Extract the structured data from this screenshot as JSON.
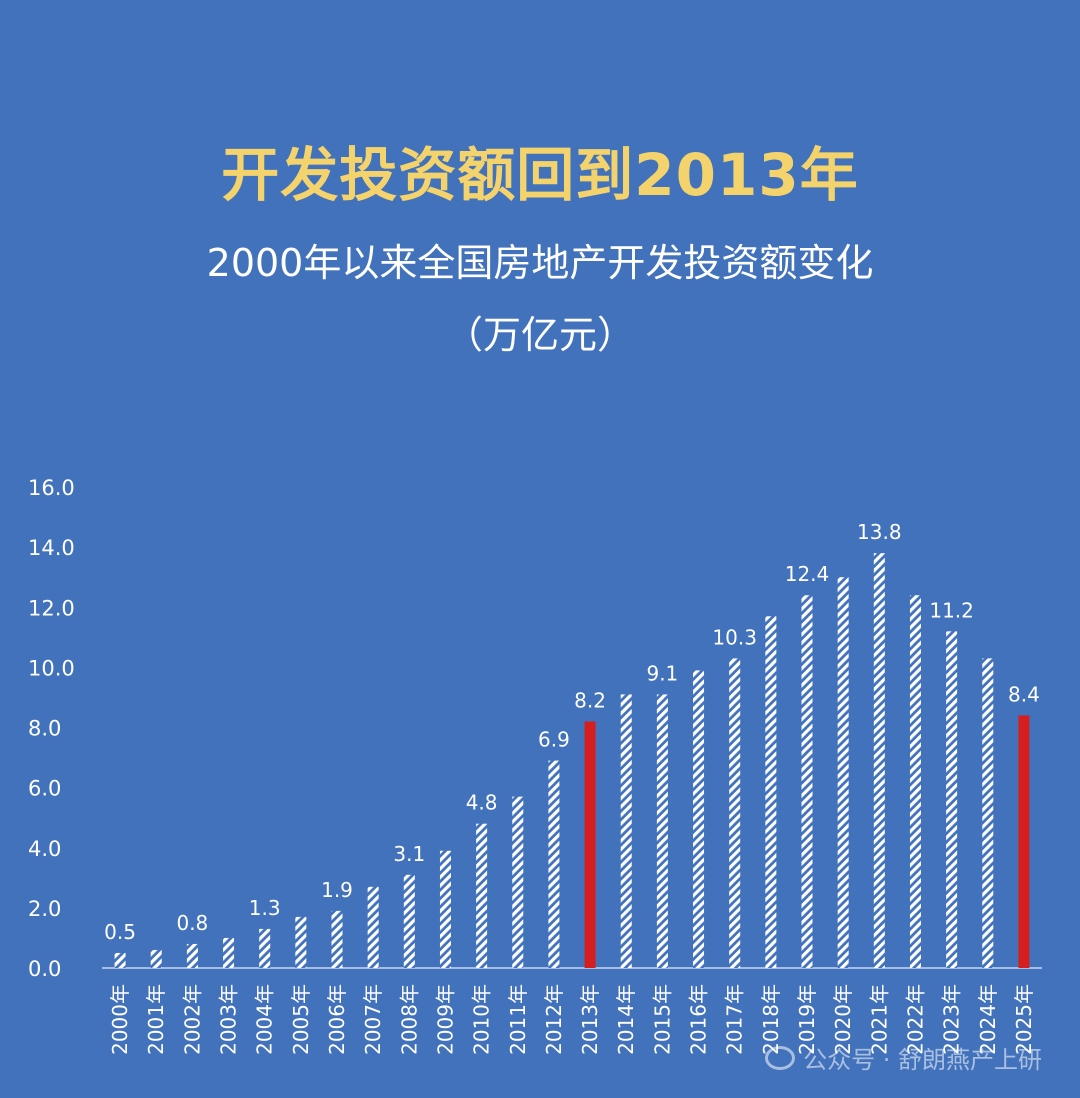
{
  "header": {
    "title": "开发投资额回到2013年",
    "subtitle": "2000年以来全国房地产开发投资额变化",
    "unit": "（万亿元）"
  },
  "watermark": {
    "text": "公众号 · 舒朗燕产上研"
  },
  "colors": {
    "background": "#4272bb",
    "title": "#f4d36c",
    "bar_pattern": "#ffffff",
    "highlight": "#d71e1e"
  },
  "chart_data": {
    "type": "bar",
    "title": "开发投资额回到2013年",
    "subtitle": "2000年以来全国房地产开发投资额变化",
    "unit": "（万亿元）",
    "xlabel": "",
    "ylabel": "",
    "ylim": [
      0,
      16
    ],
    "yticks": [
      "0.0",
      "2.0",
      "4.0",
      "6.0",
      "8.0",
      "10.0",
      "12.0",
      "14.0",
      "16.0"
    ],
    "grid": false,
    "categories": [
      "2000年",
      "2001年",
      "2002年",
      "2003年",
      "2004年",
      "2005年",
      "2006年",
      "2007年",
      "2008年",
      "2009年",
      "2010年",
      "2011年",
      "2012年",
      "2013年",
      "2014年",
      "2015年",
      "2016年",
      "2017年",
      "2018年",
      "2019年",
      "2020年",
      "2021年",
      "2022年",
      "2023年",
      "2024年",
      "2025年"
    ],
    "values": [
      0.5,
      0.6,
      0.8,
      1.0,
      1.3,
      1.7,
      1.9,
      2.7,
      3.1,
      3.9,
      4.8,
      5.7,
      6.9,
      8.2,
      9.1,
      9.1,
      9.9,
      10.3,
      11.7,
      12.4,
      13.0,
      13.8,
      12.4,
      11.2,
      10.3,
      8.4
    ],
    "highlighted": [
      "2013年",
      "2025年"
    ],
    "data_labels": [
      {
        "category": "2000年",
        "text": "0.5"
      },
      {
        "category": "2002年",
        "text": "0.8"
      },
      {
        "category": "2004年",
        "text": "1.3"
      },
      {
        "category": "2006年",
        "text": "1.9"
      },
      {
        "category": "2008年",
        "text": "3.1"
      },
      {
        "category": "2010年",
        "text": "4.8"
      },
      {
        "category": "2012年",
        "text": "6.9"
      },
      {
        "category": "2013年",
        "text": "8.2"
      },
      {
        "category": "2015年",
        "text": "9.1"
      },
      {
        "category": "2017年",
        "text": "10.3"
      },
      {
        "category": "2019年",
        "text": "12.4"
      },
      {
        "category": "2021年",
        "text": "13.8"
      },
      {
        "category": "2023年",
        "text": "11.2"
      },
      {
        "category": "2025年",
        "text": "8.4"
      }
    ]
  }
}
